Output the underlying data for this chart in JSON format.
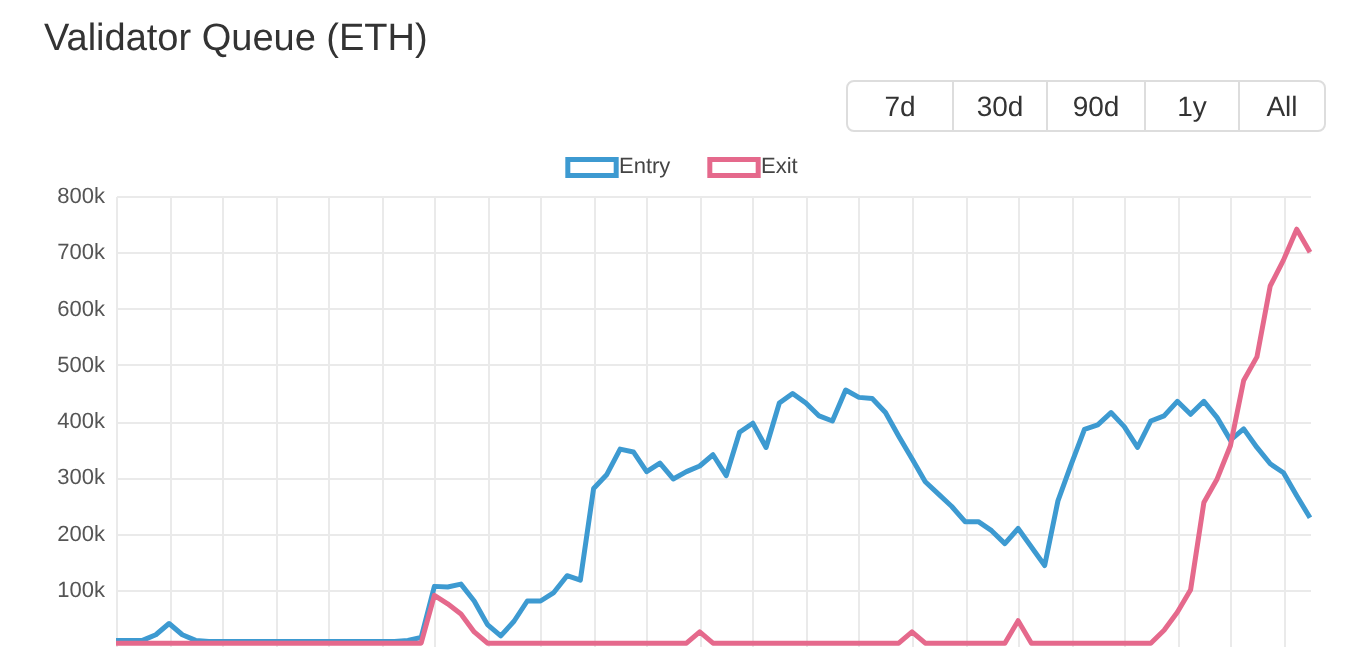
{
  "chart_data": {
    "type": "line",
    "title": "Validator Queue (ETH)",
    "annotations": [
      "7d",
      "30d",
      "90d",
      "1y",
      "All"
    ],
    "categories": [
      null,
      null,
      null,
      null,
      null,
      null,
      null,
      null,
      null,
      null,
      null,
      null,
      null,
      null,
      null,
      null,
      null,
      null,
      null,
      null,
      null,
      null,
      null,
      null,
      null,
      null,
      null,
      null,
      null,
      null,
      null,
      null,
      null,
      null,
      null,
      null,
      null,
      null,
      null,
      null,
      null,
      null,
      null,
      null,
      null,
      null,
      null,
      null,
      null,
      null,
      null,
      null,
      null,
      null,
      null,
      null,
      null,
      null,
      null,
      null,
      null,
      null,
      null,
      null,
      null,
      null,
      null,
      null,
      null,
      null,
      null,
      null,
      null,
      null,
      null,
      null,
      null,
      null,
      null,
      null,
      null,
      null,
      null,
      null,
      null,
      null,
      null,
      null,
      null,
      null,
      null
    ],
    "series": [
      {
        "name": "Entry",
        "color": "#3d9ad1",
        "values": [
          10000,
          10000,
          10000,
          20000,
          40000,
          20000,
          10000,
          8000,
          8000,
          8000,
          8000,
          8000,
          8000,
          8000,
          8000,
          8000,
          8000,
          8000,
          8000,
          8000,
          8000,
          8000,
          10000,
          15000,
          106000,
          105000,
          110000,
          80000,
          38000,
          18000,
          44000,
          80000,
          80000,
          95000,
          125000,
          117000,
          280000,
          305000,
          350000,
          345000,
          310000,
          325000,
          297000,
          310000,
          320000,
          340000,
          303000,
          380000,
          396000,
          353000,
          432000,
          449000,
          432000,
          409000,
          400000,
          455000,
          442000,
          440000,
          415000,
          373000,
          333000,
          292000,
          270000,
          248000,
          221000,
          221000,
          205000,
          182000,
          209000,
          176000,
          143000,
          258000,
          323000,
          385000,
          393000,
          415000,
          390000,
          353000,
          400000,
          409000,
          435000,
          412000,
          435000,
          406000,
          366000,
          386000,
          353000,
          324000,
          308000,
          267000,
          228000
        ]
      },
      {
        "name": "Exit",
        "color": "#e5698c",
        "values": [
          5000,
          5000,
          5000,
          5000,
          5000,
          5000,
          5000,
          5000,
          5000,
          5000,
          5000,
          5000,
          5000,
          5000,
          5000,
          5000,
          5000,
          5000,
          5000,
          5000,
          5000,
          5000,
          5000,
          5000,
          90000,
          75000,
          57000,
          25000,
          5000,
          5000,
          5000,
          5000,
          5000,
          5000,
          5000,
          5000,
          5000,
          5000,
          5000,
          5000,
          5000,
          5000,
          5000,
          5000,
          25000,
          5000,
          5000,
          5000,
          5000,
          5000,
          5000,
          5000,
          5000,
          5000,
          5000,
          5000,
          5000,
          5000,
          5000,
          5000,
          25000,
          5000,
          5000,
          5000,
          5000,
          5000,
          5000,
          5000,
          45000,
          5000,
          5000,
          5000,
          5000,
          5000,
          5000,
          5000,
          5000,
          5000,
          5000,
          28000,
          60000,
          100000,
          255000,
          297000,
          356000,
          472000,
          514000,
          640000,
          686000,
          741000,
          700000
        ]
      }
    ],
    "ylim": [
      0,
      800000
    ],
    "yticks": [
      {
        "value": 100000,
        "label": "100k"
      },
      {
        "value": 200000,
        "label": "200k"
      },
      {
        "value": 300000,
        "label": "300k"
      },
      {
        "value": 400000,
        "label": "400k"
      },
      {
        "value": 500000,
        "label": "500k"
      },
      {
        "value": 600000,
        "label": "600k"
      },
      {
        "value": 700000,
        "label": "700k"
      },
      {
        "value": 800000,
        "label": "800k"
      }
    ],
    "grid": true,
    "legend": "top",
    "tick_labels": "y",
    "marker": "none",
    "line_style": "solid"
  }
}
